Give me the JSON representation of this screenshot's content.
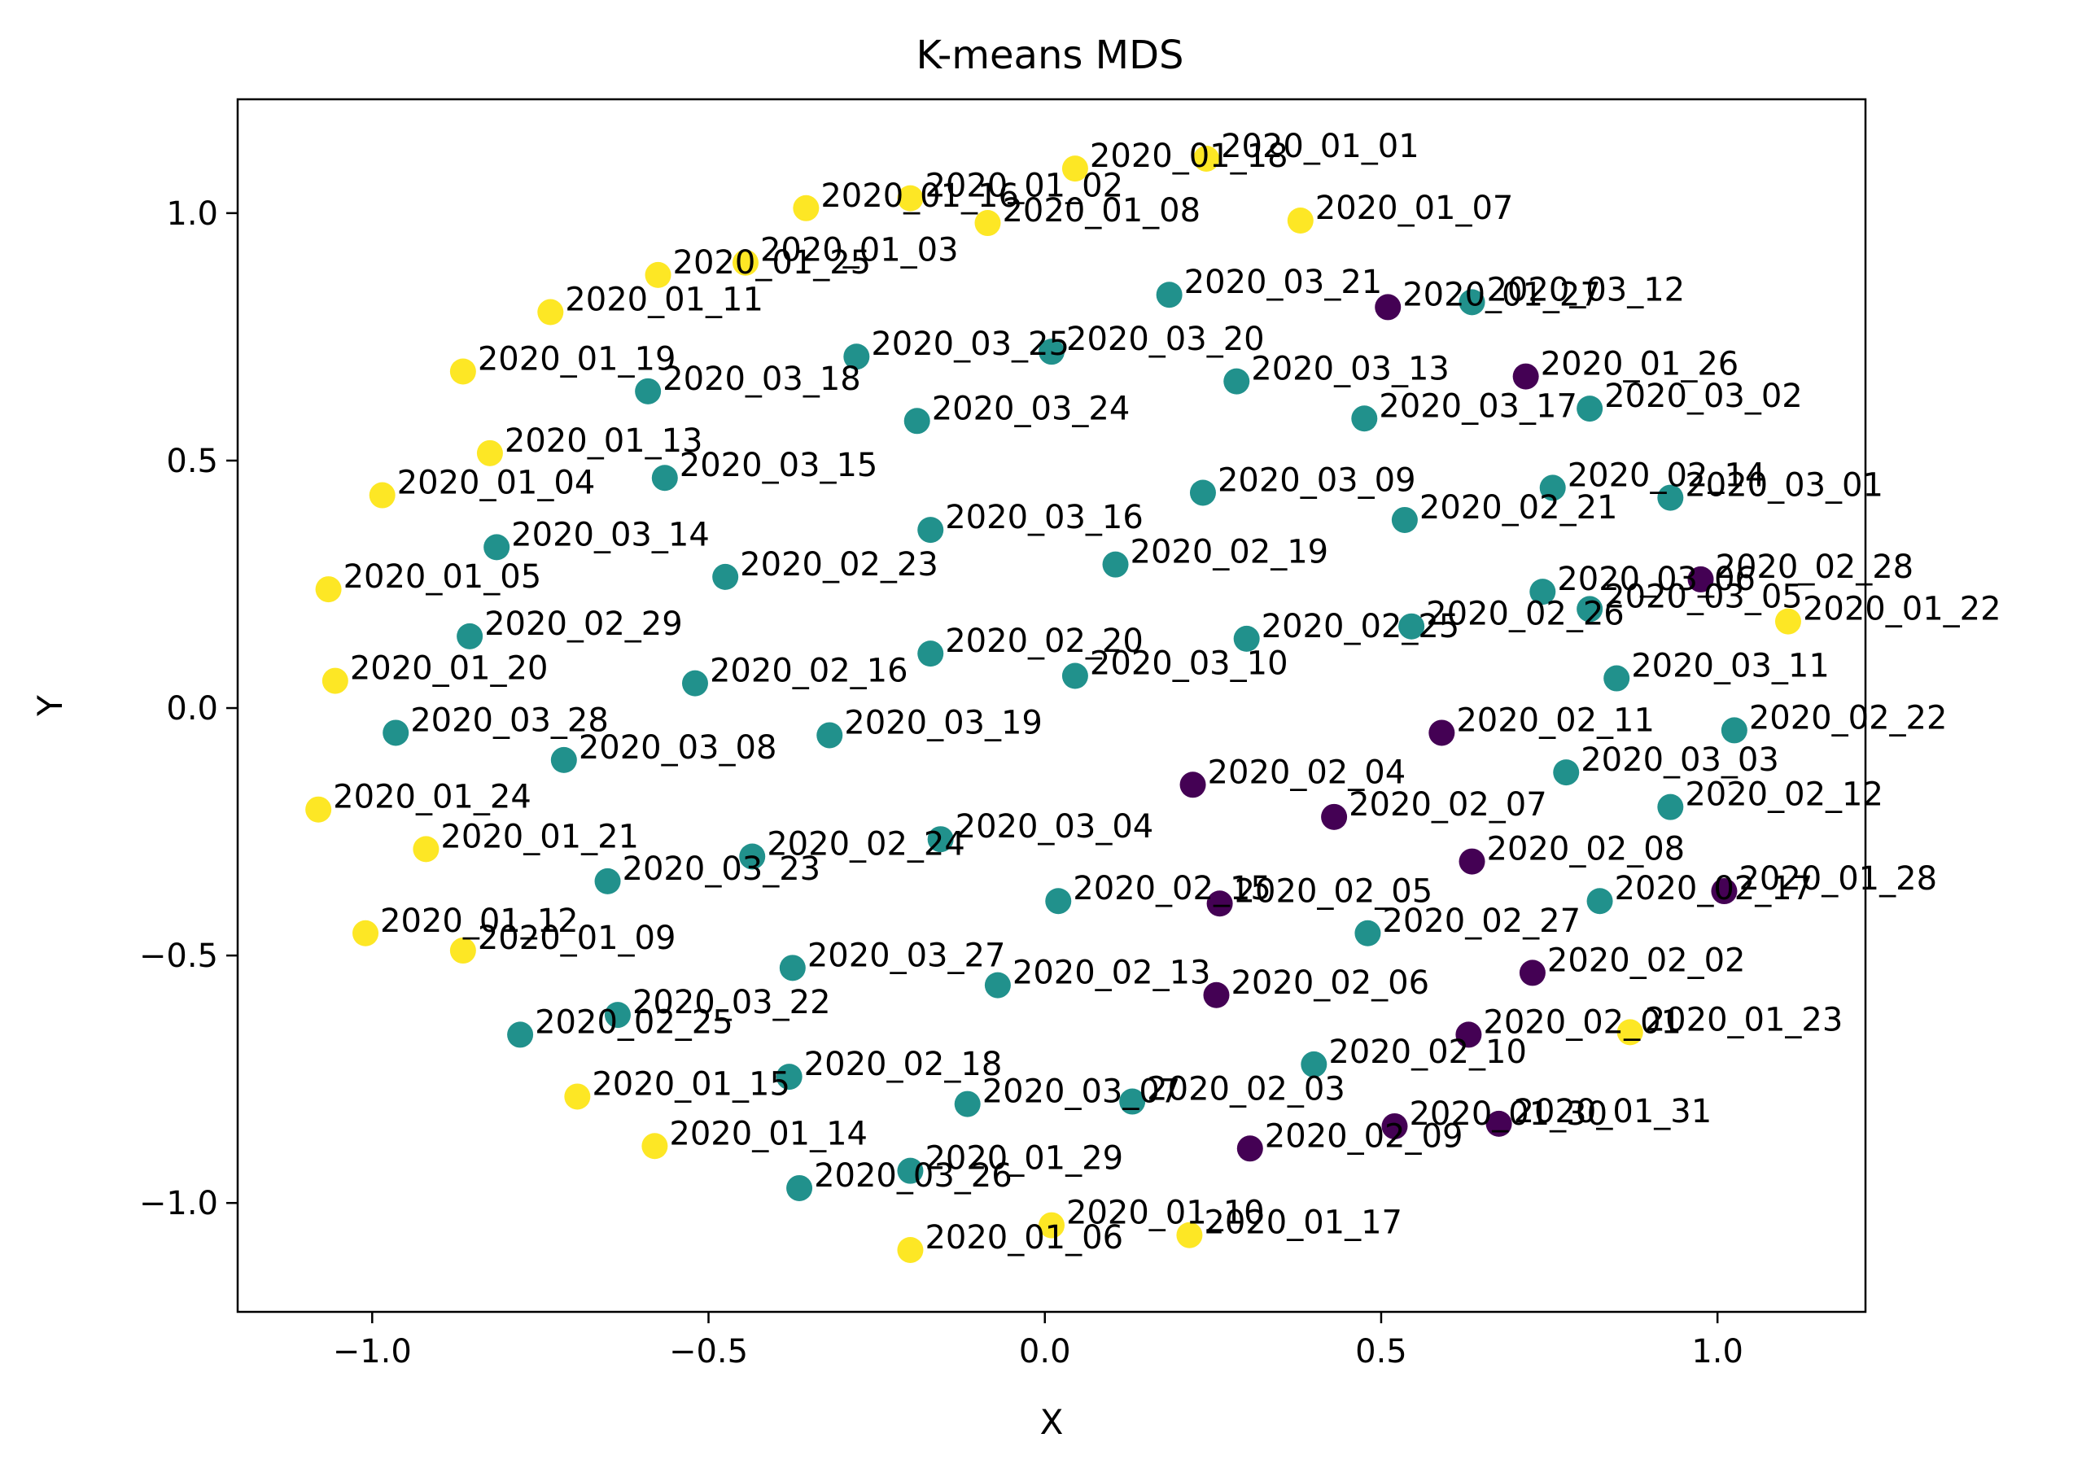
{
  "chart_data": {
    "type": "scatter",
    "title": "K-means MDS",
    "xlabel": "X",
    "ylabel": "Y",
    "xlim": [
      -1.2,
      1.22
    ],
    "ylim": [
      -1.22,
      1.23
    ],
    "xticks": [
      -1.0,
      -0.5,
      0.0,
      0.5,
      1.0
    ],
    "xtick_labels": [
      "−1.0",
      "−0.5",
      "0.0",
      "0.5",
      "1.0"
    ],
    "yticks": [
      -1.0,
      -0.5,
      0.0,
      0.5,
      1.0
    ],
    "ytick_labels": [
      "−1.0",
      "−0.5",
      "0.0",
      "0.5",
      "1.0"
    ],
    "grid": false,
    "legend": "none",
    "cluster_colors": [
      "#440154",
      "#21918c",
      "#fde725"
    ],
    "points": [
      {
        "label": "2020_01_01",
        "x": 0.24,
        "y": 1.11,
        "cluster": 2
      },
      {
        "label": "2020_01_18",
        "x": 0.045,
        "y": 1.09,
        "cluster": 2
      },
      {
        "label": "2020_01_02",
        "x": -0.2,
        "y": 1.03,
        "cluster": 2
      },
      {
        "label": "2020_01_16",
        "x": -0.355,
        "y": 1.01,
        "cluster": 2
      },
      {
        "label": "2020_01_08",
        "x": -0.085,
        "y": 0.98,
        "cluster": 2
      },
      {
        "label": "2020_01_07",
        "x": 0.38,
        "y": 0.985,
        "cluster": 2
      },
      {
        "label": "2020_01_03",
        "x": -0.445,
        "y": 0.9,
        "cluster": 2
      },
      {
        "label": "2020_01_25",
        "x": -0.575,
        "y": 0.875,
        "cluster": 2
      },
      {
        "label": "2020_01_11",
        "x": -0.735,
        "y": 0.8,
        "cluster": 2
      },
      {
        "label": "2020_01_19",
        "x": -0.865,
        "y": 0.68,
        "cluster": 2
      },
      {
        "label": "2020_01_13",
        "x": -0.825,
        "y": 0.515,
        "cluster": 2
      },
      {
        "label": "2020_01_04",
        "x": -0.985,
        "y": 0.43,
        "cluster": 2
      },
      {
        "label": "2020_01_05",
        "x": -1.065,
        "y": 0.24,
        "cluster": 2
      },
      {
        "label": "2020_01_20",
        "x": -1.055,
        "y": 0.055,
        "cluster": 2
      },
      {
        "label": "2020_01_24",
        "x": -1.08,
        "y": -0.205,
        "cluster": 2
      },
      {
        "label": "2020_01_21",
        "x": -0.92,
        "y": -0.285,
        "cluster": 2
      },
      {
        "label": "2020_01_12",
        "x": -1.01,
        "y": -0.455,
        "cluster": 2
      },
      {
        "label": "2020_01_09",
        "x": -0.865,
        "y": -0.49,
        "cluster": 2
      },
      {
        "label": "2020_01_15",
        "x": -0.695,
        "y": -0.785,
        "cluster": 2
      },
      {
        "label": "2020_01_14",
        "x": -0.58,
        "y": -0.885,
        "cluster": 2
      },
      {
        "label": "2020_01_06",
        "x": -0.2,
        "y": -1.095,
        "cluster": 2
      },
      {
        "label": "2020_01_10",
        "x": 0.01,
        "y": -1.045,
        "cluster": 2
      },
      {
        "label": "2020_01_17",
        "x": 0.215,
        "y": -1.065,
        "cluster": 2
      },
      {
        "label": "2020_01_23",
        "x": 0.87,
        "y": -0.655,
        "cluster": 2
      },
      {
        "label": "2020_01_22",
        "x": 1.105,
        "y": 0.175,
        "cluster": 2
      },
      {
        "label": "2020_03_21",
        "x": 0.185,
        "y": 0.835,
        "cluster": 1
      },
      {
        "label": "2020_01_27",
        "x": 0.51,
        "y": 0.81,
        "cluster": 0
      },
      {
        "label": "2020_03_12",
        "x": 0.635,
        "y": 0.82,
        "cluster": 1
      },
      {
        "label": "2020_03_25",
        "x": -0.28,
        "y": 0.71,
        "cluster": 1
      },
      {
        "label": "2020_03_20",
        "x": 0.01,
        "y": 0.72,
        "cluster": 1
      },
      {
        "label": "2020_03_18",
        "x": -0.59,
        "y": 0.64,
        "cluster": 1
      },
      {
        "label": "2020_03_13",
        "x": 0.285,
        "y": 0.66,
        "cluster": 1
      },
      {
        "label": "2020_01_26",
        "x": 0.715,
        "y": 0.67,
        "cluster": 0
      },
      {
        "label": "2020_03_24",
        "x": -0.19,
        "y": 0.58,
        "cluster": 1
      },
      {
        "label": "2020_03_17",
        "x": 0.475,
        "y": 0.585,
        "cluster": 1
      },
      {
        "label": "2020_03_02",
        "x": 0.81,
        "y": 0.605,
        "cluster": 1
      },
      {
        "label": "2020_03_15",
        "x": -0.565,
        "y": 0.465,
        "cluster": 1
      },
      {
        "label": "2020_03_09",
        "x": 0.235,
        "y": 0.435,
        "cluster": 1
      },
      {
        "label": "2020_02_14",
        "x": 0.755,
        "y": 0.445,
        "cluster": 1
      },
      {
        "label": "2020_03_01",
        "x": 0.93,
        "y": 0.425,
        "cluster": 1
      },
      {
        "label": "2020_02_21",
        "x": 0.535,
        "y": 0.38,
        "cluster": 1
      },
      {
        "label": "2020_03_16",
        "x": -0.17,
        "y": 0.36,
        "cluster": 1
      },
      {
        "label": "2020_03_14",
        "x": -0.815,
        "y": 0.325,
        "cluster": 1
      },
      {
        "label": "2020_02_19",
        "x": 0.105,
        "y": 0.29,
        "cluster": 1
      },
      {
        "label": "2020_02_23",
        "x": -0.475,
        "y": 0.265,
        "cluster": 1
      },
      {
        "label": "2020_02_28",
        "x": 0.975,
        "y": 0.26,
        "cluster": 0
      },
      {
        "label": "2020_03_06",
        "x": 0.74,
        "y": 0.235,
        "cluster": 1
      },
      {
        "label": "2020_02_26",
        "x": 0.545,
        "y": 0.165,
        "cluster": 1
      },
      {
        "label": "2020_03_05",
        "x": 0.81,
        "y": 0.2,
        "cluster": 1
      },
      {
        "label": "2020_02_29",
        "x": -0.855,
        "y": 0.145,
        "cluster": 1
      },
      {
        "label": "2020_02_20",
        "x": -0.17,
        "y": 0.11,
        "cluster": 1
      },
      {
        "label": "2020_02_16",
        "x": -0.52,
        "y": 0.05,
        "cluster": 1
      },
      {
        "label": "2020_03_10",
        "x": 0.045,
        "y": 0.065,
        "cluster": 1
      },
      {
        "label": "2020_02_25",
        "x": 0.3,
        "y": 0.14,
        "cluster": 1
      },
      {
        "label": "2020_03_11",
        "x": 0.85,
        "y": 0.06,
        "cluster": 1
      },
      {
        "label": "2020_03_28",
        "x": -0.965,
        "y": -0.05,
        "cluster": 1
      },
      {
        "label": "2020_03_19",
        "x": -0.32,
        "y": -0.055,
        "cluster": 1
      },
      {
        "label": "2020_03_08",
        "x": -0.715,
        "y": -0.105,
        "cluster": 1
      },
      {
        "label": "2020_02_11",
        "x": 0.59,
        "y": -0.05,
        "cluster": 0
      },
      {
        "label": "2020_02_22",
        "x": 1.025,
        "y": -0.045,
        "cluster": 1
      },
      {
        "label": "2020_03_03",
        "x": 0.775,
        "y": -0.13,
        "cluster": 1
      },
      {
        "label": "2020_02_04",
        "x": 0.22,
        "y": -0.155,
        "cluster": 0
      },
      {
        "label": "2020_02_07",
        "x": 0.43,
        "y": -0.22,
        "cluster": 0
      },
      {
        "label": "2020_02_12",
        "x": 0.93,
        "y": -0.2,
        "cluster": 1
      },
      {
        "label": "2020_03_04",
        "x": -0.155,
        "y": -0.265,
        "cluster": 1
      },
      {
        "label": "2020_02_24",
        "x": -0.435,
        "y": -0.3,
        "cluster": 1
      },
      {
        "label": "2020_02_08",
        "x": 0.635,
        "y": -0.31,
        "cluster": 0
      },
      {
        "label": "2020_03_23",
        "x": -0.65,
        "y": -0.35,
        "cluster": 1
      },
      {
        "label": "2020_02_15",
        "x": 0.02,
        "y": -0.39,
        "cluster": 1
      },
      {
        "label": "2020_02_05",
        "x": 0.26,
        "y": -0.395,
        "cluster": 0
      },
      {
        "label": "2020_02_17",
        "x": 0.825,
        "y": -0.39,
        "cluster": 1
      },
      {
        "label": "2020_01_28",
        "x": 1.01,
        "y": -0.37,
        "cluster": 0
      },
      {
        "label": "2020_02_27",
        "x": 0.48,
        "y": -0.455,
        "cluster": 1
      },
      {
        "label": "2020_03_27",
        "x": -0.375,
        "y": -0.525,
        "cluster": 1
      },
      {
        "label": "2020_02_02",
        "x": 0.725,
        "y": -0.535,
        "cluster": 0
      },
      {
        "label": "2020_02_13",
        "x": -0.07,
        "y": -0.56,
        "cluster": 1
      },
      {
        "label": "2020_02_06",
        "x": 0.255,
        "y": -0.58,
        "cluster": 0
      },
      {
        "label": "2020_03_22",
        "x": -0.635,
        "y": -0.62,
        "cluster": 1
      },
      {
        "label": "2020_02_25_b",
        "x": -0.78,
        "y": -0.66,
        "cluster": 1
      },
      {
        "label": "2020_02_01",
        "x": 0.63,
        "y": -0.66,
        "cluster": 0
      },
      {
        "label": "2020_02_10",
        "x": 0.4,
        "y": -0.72,
        "cluster": 1
      },
      {
        "label": "2020_02_18",
        "x": -0.38,
        "y": -0.745,
        "cluster": 1
      },
      {
        "label": "2020_03_07",
        "x": -0.115,
        "y": -0.8,
        "cluster": 1
      },
      {
        "label": "2020_02_03",
        "x": 0.13,
        "y": -0.795,
        "cluster": 1
      },
      {
        "label": "2020_01_30",
        "x": 0.52,
        "y": -0.845,
        "cluster": 0
      },
      {
        "label": "2020_01_31",
        "x": 0.675,
        "y": -0.84,
        "cluster": 0
      },
      {
        "label": "2020_02_09",
        "x": 0.305,
        "y": -0.89,
        "cluster": 0
      },
      {
        "label": "2020_01_29",
        "x": -0.2,
        "y": -0.935,
        "cluster": 1
      },
      {
        "label": "2020_03_26",
        "x": -0.365,
        "y": -0.97,
        "cluster": 1
      }
    ],
    "label_text_overrides": {
      "2020_02_25_b": "2020_02_25"
    }
  }
}
